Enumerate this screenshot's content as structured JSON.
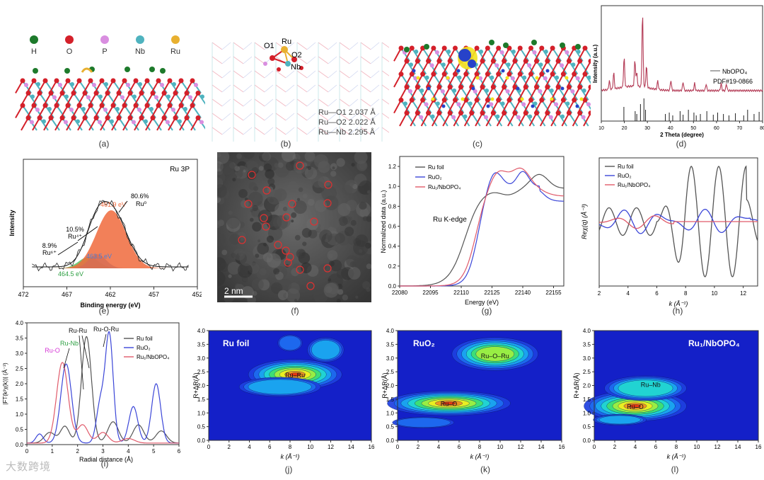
{
  "panel_a": {
    "label": "(a)",
    "legend": [
      {
        "symbol": "H",
        "color": "#1d7a2b"
      },
      {
        "symbol": "O",
        "color": "#d4202a"
      },
      {
        "symbol": "P",
        "color": "#d98ee0"
      },
      {
        "symbol": "Nb",
        "color": "#4fb3bf"
      },
      {
        "symbol": "Ru",
        "color": "#e8b030"
      }
    ]
  },
  "panel_b": {
    "label": "(b)",
    "atoms": [
      "O1",
      "Ru",
      "O2",
      "Nb"
    ],
    "bonds": [
      "Ru—O1 2.037 Å",
      "Ru—O2 2.022 Å",
      "Ru—Nb 2.295 Å"
    ]
  },
  "panel_c": {
    "label": "(c)"
  },
  "panel_d": {
    "label": "(d)",
    "chart_data": {
      "type": "line",
      "xlabel": "2 Theta (degree)",
      "ylabel": "Intensity (a.u.)",
      "xlim": [
        10,
        80
      ],
      "xticks": [
        "10",
        "20",
        "30",
        "40",
        "50",
        "60",
        "70",
        "80"
      ],
      "legend": [
        "NbOPO₄",
        "PDF#19-0866"
      ],
      "ref_peaks": [
        19.8,
        24.7,
        25.4,
        27.0,
        28.5,
        29.2,
        37.8,
        39.5,
        41.0,
        44.2,
        45.5,
        47.8,
        50.2,
        51.2,
        53.0,
        55.8,
        58.6,
        60.5,
        63.0,
        65.4,
        68.2,
        71.8,
        73.5,
        76.3,
        78.5
      ]
    }
  },
  "panel_e": {
    "label": "(e)",
    "chart_data": {
      "type": "line",
      "title": "Ru 3P",
      "xlabel": "Binding energy (eV)",
      "ylabel": "Intensity",
      "xlim": [
        472,
        452
      ],
      "xticks": [
        "472",
        "467",
        "462",
        "457",
        "452"
      ],
      "peaks": [
        {
          "name": "Ru0",
          "center": 461.9,
          "share": "80.6%",
          "label": "461.9 eV",
          "color": "#f06a3c"
        },
        {
          "name": "Ru4+",
          "center": 463.5,
          "share": "10.5%",
          "label": "463.5 eV",
          "color": "#4a7fd8"
        },
        {
          "name": "Ru6+",
          "center": 464.5,
          "share": "8.9%",
          "label": "464.5 eV",
          "color": "#4cbf5a"
        }
      ],
      "annotations": [
        "8.9%",
        "Ru⁶⁺",
        "10.5%",
        "Ru⁴⁺",
        "80.6%",
        "Ru⁰",
        "461.9 eV",
        "463.5 eV",
        "464.5 eV"
      ]
    }
  },
  "panel_f": {
    "label": "(f)",
    "scalebar": "2 nm"
  },
  "panel_g": {
    "label": "(g)",
    "chart_data": {
      "type": "line",
      "xlabel": "Energy (eV)",
      "ylabel": "Normalized data (a.u.)",
      "xlim": [
        22080,
        22160
      ],
      "ylim": [
        0,
        1.3
      ],
      "xticks": [
        "22080",
        "22095",
        "22110",
        "22125",
        "22140",
        "22155"
      ],
      "yticks": [
        "0.0",
        "0.2",
        "0.4",
        "0.6",
        "0.8",
        "1.0",
        "1.2"
      ],
      "note": "Ru K-edge",
      "series": [
        {
          "name": "Ru foil",
          "color": "#555555"
        },
        {
          "name": "RuO₂",
          "color": "#3b46d8"
        },
        {
          "name": "Ru₁/NbOPO₄",
          "color": "#e05a6a"
        }
      ]
    }
  },
  "panel_h": {
    "label": "(h)",
    "chart_data": {
      "type": "line",
      "xlabel": "k (Å⁻¹)",
      "ylabel": "Reχ(q) (Å⁻³)",
      "xlim": [
        2,
        13
      ],
      "xticks": [
        "2",
        "4",
        "6",
        "8",
        "10",
        "12"
      ],
      "series": [
        {
          "name": "Ru foil",
          "color": "#555555"
        },
        {
          "name": "RuO₂",
          "color": "#3b46d8"
        },
        {
          "name": "Ru₁/NbOPO₄",
          "color": "#e05a6a"
        }
      ]
    }
  },
  "panel_i": {
    "label": "(i)",
    "chart_data": {
      "type": "line",
      "xlabel": "Radial distance (Å)",
      "ylabel": "|FT(k²χ(k))| (Å⁻³)",
      "xlim": [
        0,
        6
      ],
      "ylim": [
        0,
        4.0
      ],
      "xticks": [
        "0",
        "1",
        "2",
        "3",
        "4",
        "5",
        "6"
      ],
      "yticks": [
        "0.0",
        "0.5",
        "1.0",
        "1.5",
        "2.0",
        "2.5",
        "3.0",
        "3.5",
        "4.0"
      ],
      "series": [
        {
          "name": "Ru foil",
          "color": "#555555",
          "peak_r": 2.35
        },
        {
          "name": "RuO₂",
          "color": "#3b46d8",
          "peak_r": 3.2
        },
        {
          "name": "Ru₁/NbOPO₄",
          "color": "#e05a6a",
          "peak_r": 1.5
        }
      ],
      "annotations": [
        {
          "text": "Ru-O",
          "color": "#d63ad6"
        },
        {
          "text": "Ru-Nb",
          "color": "#2ea043"
        },
        {
          "text": "Ru-Ru",
          "color": "#111111"
        },
        {
          "text": "Ru-O-Ru",
          "color": "#111111"
        }
      ]
    }
  },
  "panel_j": {
    "label": "(j)",
    "chart_data": {
      "type": "heatmap",
      "title": "Ru foil",
      "xlabel": "k (Å⁻¹)",
      "ylabel": "R+ΔR(Å)",
      "xlim": [
        0,
        16
      ],
      "ylim": [
        0,
        4.0
      ],
      "xticks": [
        "0",
        "2",
        "4",
        "6",
        "8",
        "10",
        "12",
        "14",
        "16"
      ],
      "yticks": [
        "0.0",
        "0.5",
        "1.0",
        "1.5",
        "2.0",
        "2.5",
        "3.0",
        "3.5",
        "4.0"
      ],
      "maxima": [
        {
          "label": "Ru–Ru",
          "k": 8.5,
          "r": 2.4
        }
      ]
    }
  },
  "panel_k": {
    "label": "(k)",
    "chart_data": {
      "type": "heatmap",
      "title": "RuO₂",
      "xlabel": "k (Å⁻¹)",
      "ylabel": "R+ΔR(Å)",
      "xlim": [
        0,
        16
      ],
      "ylim": [
        0,
        4.0
      ],
      "xticks": [
        "0",
        "2",
        "4",
        "6",
        "8",
        "10",
        "12",
        "14",
        "16"
      ],
      "yticks": [
        "0.0",
        "0.5",
        "1.0",
        "1.5",
        "2.0",
        "2.5",
        "3.0",
        "3.5",
        "4.0"
      ],
      "maxima": [
        {
          "label": "Ru–O",
          "k": 5,
          "r": 1.35
        },
        {
          "label": "Ru–O–Ru",
          "k": 9.5,
          "r": 3.1
        }
      ]
    }
  },
  "panel_l": {
    "label": "(l)",
    "chart_data": {
      "type": "heatmap",
      "title": "Ru₁/NbOPO₄",
      "xlabel": "k (Å⁻¹)",
      "ylabel": "R+ΔR(Å)",
      "xlim": [
        0,
        16
      ],
      "ylim": [
        0,
        4.0
      ],
      "xticks": [
        "0",
        "2",
        "4",
        "6",
        "8",
        "10",
        "12",
        "14",
        "16"
      ],
      "yticks": [
        "0.0",
        "0.5",
        "1.0",
        "1.5",
        "2.0",
        "2.5",
        "3.0",
        "3.5",
        "4.0"
      ],
      "maxima": [
        {
          "label": "Ru–O",
          "k": 4,
          "r": 1.25
        },
        {
          "label": "Ru–Nb",
          "k": 5.5,
          "r": 2.05
        }
      ]
    }
  },
  "watermark": "大数跨境"
}
